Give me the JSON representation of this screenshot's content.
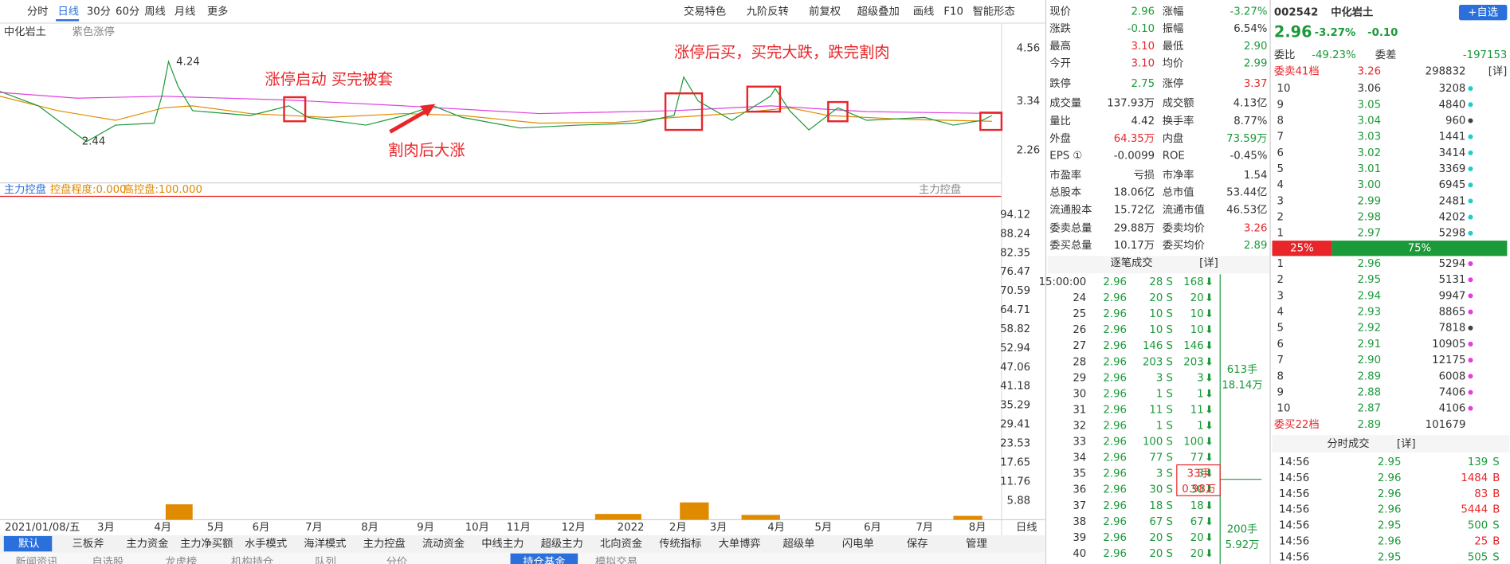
{
  "toolbar": {
    "periods": [
      "分时",
      "日线",
      "30分",
      "60分",
      "周线",
      "月线"
    ],
    "more": "更多",
    "tools": [
      "交易特色",
      "九阶反转",
      "前复权",
      "超级叠加",
      "画线",
      "F10",
      "智能形态"
    ]
  },
  "chart": {
    "stock": "中化岩土",
    "indicator_name": "紫色涨停",
    "price_labels": [
      "4.56",
      "3.34",
      "2.26"
    ],
    "high": "4.24",
    "low": "2.44",
    "annotations": [
      "涨停启动  买完被套",
      "割肉后大涨",
      "涨停后买，买完大跌，跌完割肉"
    ],
    "sub_header": [
      "主力控盘",
      "控盘程度:0.000",
      "高控盘:100.000"
    ],
    "sub_header_right": "主力控盘",
    "sub_axis": [
      "94.12",
      "88.24",
      "82.35",
      "76.47",
      "70.59",
      "64.71",
      "58.82",
      "52.94",
      "47.06",
      "41.18",
      "35.29",
      "29.41",
      "23.53",
      "17.65",
      "11.76",
      "5.88"
    ],
    "x_axis": [
      "2021/01/08/五",
      "3月",
      "4月",
      "5月",
      "6月",
      "7月",
      "8月",
      "9月",
      "10月",
      "11月",
      "12月",
      "2022",
      "2月",
      "3月",
      "4月",
      "5月",
      "6月",
      "7月",
      "8月"
    ],
    "period": "日线"
  },
  "tabs": [
    "默认",
    "三板斧",
    "主力资金",
    "主力净买额",
    "水手模式",
    "海洋模式",
    "主力控盘",
    "流动资金",
    "中线主力",
    "超级主力",
    "北向资金",
    "传统指标",
    "大单博弈",
    "超级单",
    "闪电单",
    "保存",
    "管理"
  ],
  "tabs2": [
    "新闻资讯",
    "自选股",
    "龙虎榜",
    "机构持仓",
    "队列",
    "分价",
    "持仓基金",
    "模拟交易"
  ],
  "quote": {
    "rows": [
      [
        "现价",
        "2.96",
        "涨幅",
        "-3.27%"
      ],
      [
        "涨跌",
        "-0.10",
        "振幅",
        "6.54%"
      ],
      [
        "最高",
        "3.10",
        "最低",
        "2.90"
      ],
      [
        "今开",
        "3.10",
        "均价",
        "2.99"
      ],
      [
        "跌停",
        "2.75",
        "涨停",
        "3.37"
      ],
      [
        "成交量",
        "137.93万",
        "成交额",
        "4.13亿"
      ],
      [
        "量比",
        "4.42",
        "换手率",
        "8.77%"
      ],
      [
        "外盘",
        "64.35万",
        "内盘",
        "73.59万"
      ],
      [
        "EPS ①",
        "-0.0099",
        "ROE",
        "-0.45%"
      ],
      [
        "市盈率",
        "亏损",
        "市净率",
        "1.54"
      ],
      [
        "总股本",
        "18.06亿",
        "总市值",
        "53.44亿"
      ],
      [
        "流通股本",
        "15.72亿",
        "流通市值",
        "46.53亿"
      ],
      [
        "委卖总量",
        "29.88万",
        "委卖均价",
        "3.26"
      ],
      [
        "委买总量",
        "10.17万",
        "委买均价",
        "2.89"
      ]
    ],
    "ticks_title": "逐笔成交",
    "detail": "[详]",
    "ticks": [
      [
        "15:00:00",
        "2.96",
        "28 S",
        "168"
      ],
      [
        "24",
        "2.96",
        "20 S",
        "20"
      ],
      [
        "25",
        "2.96",
        "10 S",
        "10"
      ],
      [
        "26",
        "2.96",
        "10 S",
        "10"
      ],
      [
        "27",
        "2.96",
        "146 S",
        "146"
      ],
      [
        "28",
        "2.96",
        "203 S",
        "203"
      ],
      [
        "29",
        "2.96",
        "3 S",
        "3"
      ],
      [
        "30",
        "2.96",
        "1 S",
        "1"
      ],
      [
        "31",
        "2.96",
        "11 S",
        "11"
      ],
      [
        "32",
        "2.96",
        "1 S",
        "1"
      ],
      [
        "33",
        "2.96",
        "100 S",
        "100"
      ],
      [
        "34",
        "2.96",
        "77 S",
        "77"
      ],
      [
        "35",
        "2.96",
        "3 S",
        "3"
      ],
      [
        "36",
        "2.96",
        "30 S",
        "30"
      ],
      [
        "37",
        "2.96",
        "18 S",
        "18"
      ],
      [
        "38",
        "2.96",
        "67 S",
        "67"
      ],
      [
        "39",
        "2.96",
        "20 S",
        "20"
      ],
      [
        "40",
        "2.96",
        "20 S",
        "20"
      ]
    ],
    "groups": [
      [
        "613手",
        "18.14万"
      ],
      [
        "33手",
        "0.98万"
      ],
      [
        "200手",
        "5.92万"
      ]
    ]
  },
  "book": {
    "code": "002542",
    "name": "中化岩土",
    "add": "+自选",
    "price": "2.96",
    "pct": "-3.27%",
    "chg": "-0.10",
    "ratio": [
      "委比",
      "-49.23%",
      "委差",
      "-197153"
    ],
    "sell_total": [
      "委卖41档",
      "3.26",
      "298832"
    ],
    "detail": "[详]",
    "asks": [
      [
        "10",
        "3.06",
        "3208"
      ],
      [
        "9",
        "3.05",
        "4840"
      ],
      [
        "8",
        "3.04",
        "960"
      ],
      [
        "7",
        "3.03",
        "1441"
      ],
      [
        "6",
        "3.02",
        "3414"
      ],
      [
        "5",
        "3.01",
        "3369"
      ],
      [
        "4",
        "3.00",
        "6945"
      ],
      [
        "3",
        "2.99",
        "2481"
      ],
      [
        "2",
        "2.98",
        "4202"
      ],
      [
        "1",
        "2.97",
        "5298"
      ]
    ],
    "bar": [
      "25%",
      "75%"
    ],
    "bids": [
      [
        "1",
        "2.96",
        "5294"
      ],
      [
        "2",
        "2.95",
        "5131"
      ],
      [
        "3",
        "2.94",
        "9947"
      ],
      [
        "4",
        "2.93",
        "8865"
      ],
      [
        "5",
        "2.92",
        "7818"
      ],
      [
        "6",
        "2.91",
        "10905"
      ],
      [
        "7",
        "2.90",
        "12175"
      ],
      [
        "8",
        "2.89",
        "6008"
      ],
      [
        "9",
        "2.88",
        "7406"
      ],
      [
        "10",
        "2.87",
        "4106"
      ]
    ],
    "buy_total": [
      "委买22档",
      "2.89",
      "101679"
    ],
    "trades_title": "分时成交",
    "trades": [
      [
        "14:56",
        "2.95",
        "139",
        "S"
      ],
      [
        "14:56",
        "2.96",
        "1484",
        "B"
      ],
      [
        "14:56",
        "2.96",
        "83",
        "B"
      ],
      [
        "14:56",
        "2.96",
        "5444",
        "B"
      ],
      [
        "14:56",
        "2.95",
        "500",
        "S"
      ],
      [
        "14:56",
        "2.96",
        "25",
        "B"
      ],
      [
        "14:56",
        "2.95",
        "505",
        "S"
      ]
    ]
  }
}
